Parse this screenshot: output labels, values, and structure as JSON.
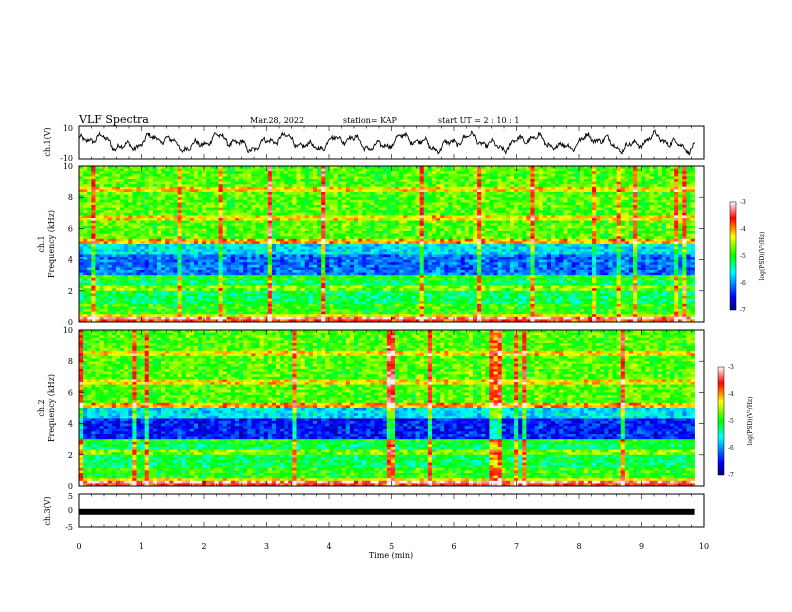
{
  "header": {
    "title": "VLF Spectra",
    "date": "Mar.28, 2022",
    "station_label": "station= KAP",
    "start_label": "start  UT =   2 : 10 : 1"
  },
  "chart_data": [
    {
      "type": "line",
      "name": "ch1-waveform",
      "ylabel": "ch.1(V)",
      "ylim": [
        -10,
        10
      ],
      "yticks": [
        "10",
        "-10"
      ],
      "xlim": [
        0,
        10
      ],
      "data_extent": [
        0,
        9.85
      ],
      "series_description": "noisy waveform oscillating between about -6 and 6 V"
    },
    {
      "type": "heatmap",
      "name": "ch1-spectrogram",
      "ylabel_line1": "ch.1",
      "ylabel_line2": "Frequency (kHz)",
      "ylim": [
        0,
        10
      ],
      "yticks": [
        "0",
        "2",
        "4",
        "6",
        "8",
        "10"
      ],
      "xlim": [
        0,
        10
      ],
      "data_extent": [
        0,
        9.85
      ],
      "colorbar": {
        "label": "log(PSD)(V²/Hz)",
        "range": [
          -7,
          -3
        ],
        "ticks": [
          "-3",
          "-4",
          "-5",
          "-6",
          "-7"
        ]
      }
    },
    {
      "type": "heatmap",
      "name": "ch2-spectrogram",
      "ylabel_line1": "ch.2",
      "ylabel_line2": "Frequency (kHz)",
      "ylim": [
        0,
        10
      ],
      "yticks": [
        "0",
        "2",
        "4",
        "6",
        "8",
        "10"
      ],
      "xlim": [
        0,
        10
      ],
      "data_extent": [
        0,
        9.85
      ],
      "colorbar": {
        "label": "log(PSD)(V²/Hz)",
        "range": [
          -7,
          -3
        ],
        "ticks": [
          "-3",
          "-4",
          "-5",
          "-6",
          "-7"
        ]
      }
    },
    {
      "type": "line",
      "name": "ch3-signal",
      "ylabel": "ch.3(V)",
      "ylim": [
        -5,
        5
      ],
      "yticks": [
        "5",
        "0",
        "-5"
      ],
      "xlim": [
        0,
        10
      ],
      "data_extent": [
        0,
        9.85
      ],
      "level": -0.4
    }
  ],
  "xaxis": {
    "label": "Time (min)",
    "ticks": [
      "0",
      "1",
      "2",
      "3",
      "4",
      "5",
      "6",
      "7",
      "8",
      "9",
      "10"
    ]
  }
}
